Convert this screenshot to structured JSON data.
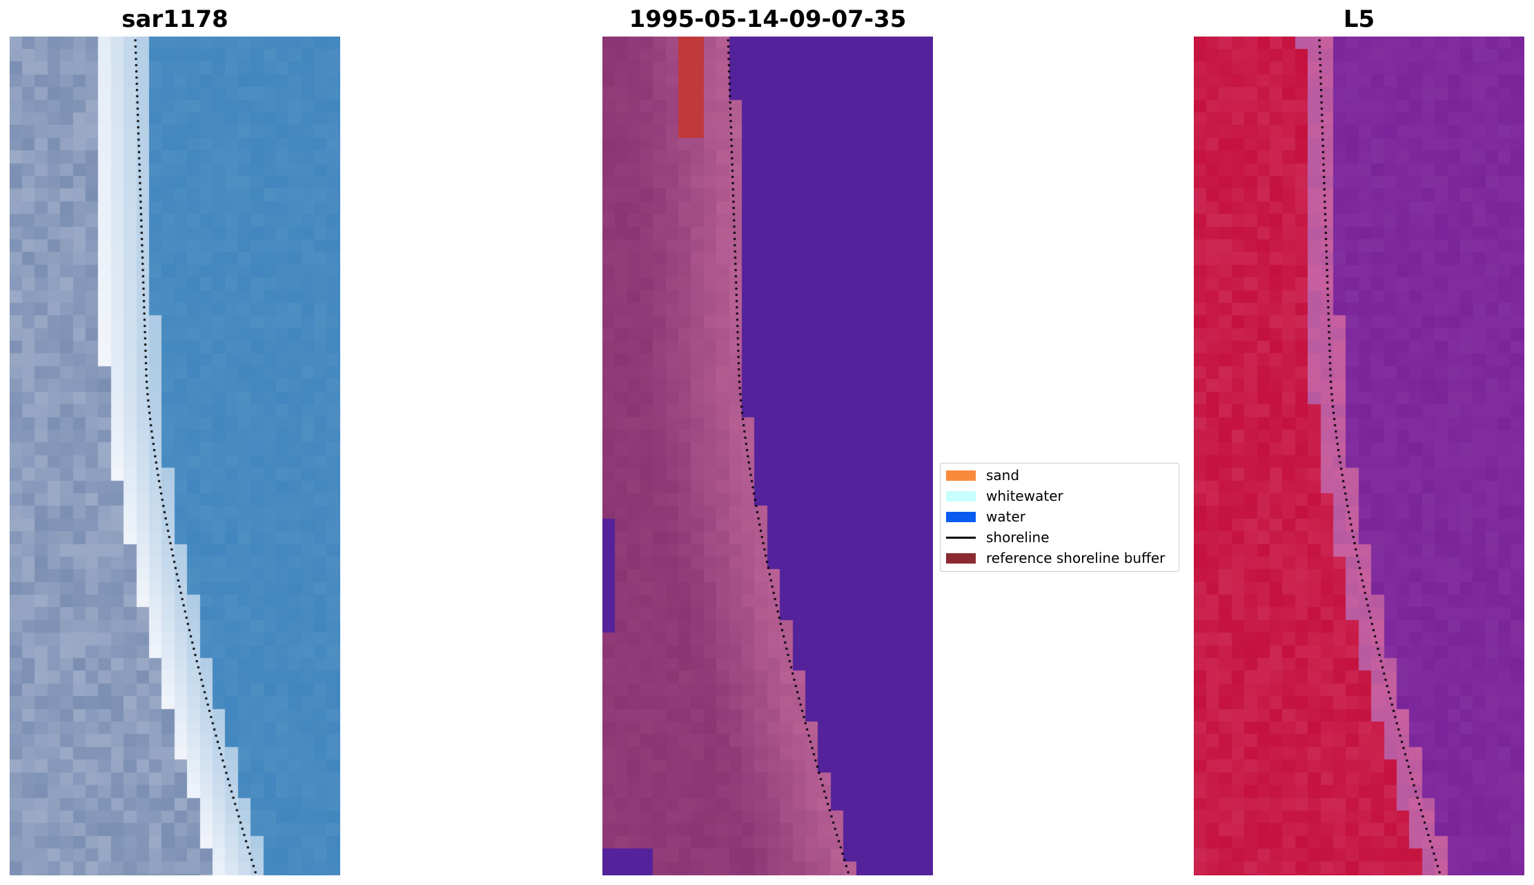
{
  "panels": [
    {
      "title": "sar1178",
      "kind": "rgb"
    },
    {
      "title": "1995-05-14-09-07-35",
      "kind": "classified"
    },
    {
      "title": "L5",
      "kind": "false-color"
    }
  ],
  "legend": {
    "items": [
      {
        "label": "sand",
        "color": "#f98a3c",
        "type": "patch"
      },
      {
        "label": "whitewater",
        "color": "#c8ffff",
        "type": "patch"
      },
      {
        "label": "water",
        "color": "#0a5cf0",
        "type": "patch"
      },
      {
        "label": "shoreline",
        "color": "#000000",
        "type": "line"
      },
      {
        "label": "reference shoreline buffer",
        "color": "#8b2a30",
        "type": "patch"
      }
    ]
  },
  "colors": {
    "rgb_land": "#7b8fb3",
    "rgb_whitewater": "#f2f5fb",
    "rgb_water": "#4287bf",
    "class_buffer": "#8a3673",
    "class_water": "#54229a",
    "class_red": "#c0393b",
    "fc_land": "#c5113d",
    "fc_water": "#7a249a"
  }
}
